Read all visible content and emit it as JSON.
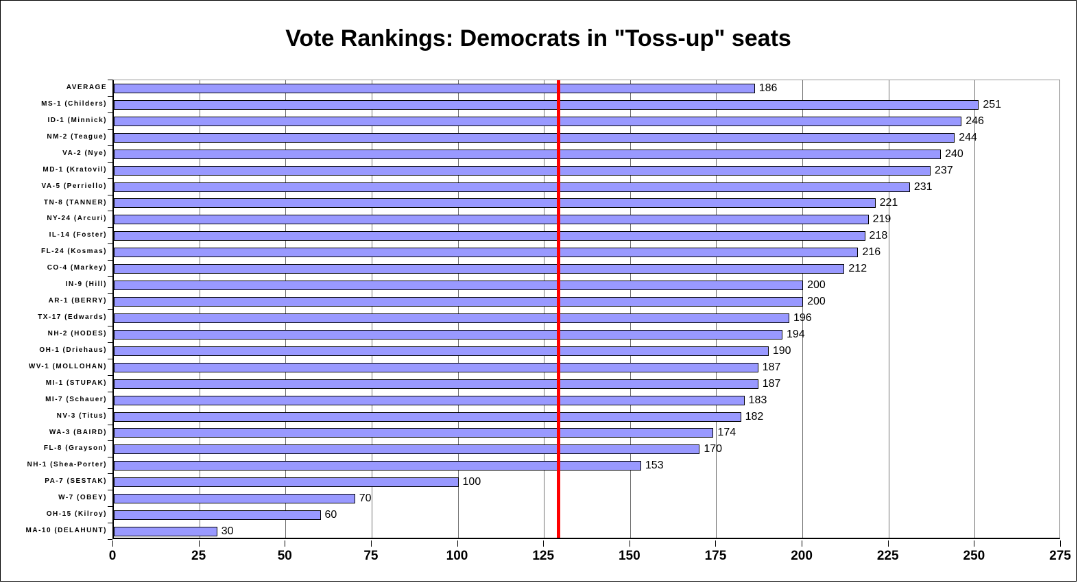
{
  "title": "Vote Rankings: Democrats in \"Toss-up\" seats",
  "chart_data": {
    "type": "bar",
    "orientation": "horizontal",
    "title": "Vote Rankings: Democrats in \"Toss-up\" seats",
    "categories": [
      "AVERAGE",
      "MS-1 (Childers)",
      "ID-1 (Minnick)",
      "NM-2 (Teague)",
      "VA-2 (Nye)",
      "MD-1 (Kratovil)",
      "VA-5 (Perriello)",
      "TN-8 (TANNER)",
      "NY-24 (Arcuri)",
      "IL-14 (Foster)",
      "FL-24 (Kosmas)",
      "CO-4 (Markey)",
      "IN-9 (Hill)",
      "AR-1 (BERRY)",
      "TX-17 (Edwards)",
      "NH-2 (HODES)",
      "OH-1 (Driehaus)",
      "WV-1 (MOLLOHAN)",
      "MI-1 (STUPAK)",
      "MI-7 (Schauer)",
      "NV-3 (Titus)",
      "WA-3 (BAIRD)",
      "FL-8 (Grayson)",
      "NH-1 (Shea-Porter)",
      "PA-7 (SESTAK)",
      "W-7 (OBEY)",
      "OH-15 (Kilroy)",
      "MA-10 (DELAHUNT)"
    ],
    "values": [
      186,
      251,
      246,
      244,
      240,
      237,
      231,
      221,
      219,
      218,
      216,
      212,
      200,
      200,
      196,
      194,
      190,
      187,
      187,
      183,
      182,
      174,
      170,
      153,
      100,
      70,
      60,
      30
    ],
    "data_labels": [
      186,
      251,
      246,
      244,
      240,
      237,
      231,
      221,
      219,
      218,
      216,
      212,
      200,
      200,
      196,
      194,
      190,
      187,
      187,
      183,
      182,
      174,
      170,
      153,
      100,
      70,
      60,
      30
    ],
    "xlabel": "",
    "ylabel": "",
    "xlim": [
      0,
      275
    ],
    "xticks": [
      0,
      25,
      50,
      75,
      100,
      125,
      150,
      175,
      200,
      225,
      250,
      275
    ],
    "grid": true,
    "legend_position": "none",
    "reference_line": {
      "value": 129,
      "color": "#ff0000"
    },
    "colors": {
      "bar_fill": "#9999ff",
      "bar_border": "#000000",
      "gridline": "#6f6f6f",
      "axis": "#000000",
      "reference_line": "#ff0000",
      "background": "#ffffff"
    }
  }
}
